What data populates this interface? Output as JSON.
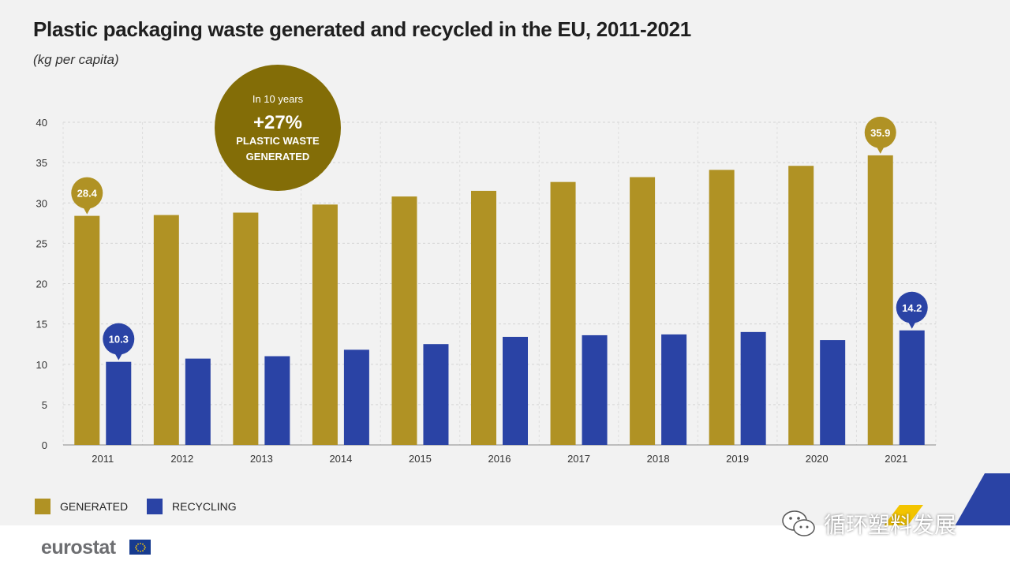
{
  "header": {
    "title": "Plastic packaging waste generated and recycled in the EU, 2011-2021",
    "subtitle": "(kg per capita)"
  },
  "callout": {
    "line1": "In 10 years",
    "value": "+27%",
    "line2": "PLASTIC WASTE",
    "line3": "GENERATED",
    "color": "#836d07"
  },
  "legend": {
    "generated": "GENERATED",
    "recycling": "RECYCLING"
  },
  "colors": {
    "generated": "#b09224",
    "recycling": "#2a43a5",
    "background": "#f2f2f2"
  },
  "footer": {
    "brand": "eurostat",
    "watermark": "循环塑料发展"
  },
  "chart_data": {
    "type": "bar",
    "categories": [
      "2011",
      "2012",
      "2013",
      "2014",
      "2015",
      "2016",
      "2017",
      "2018",
      "2019",
      "2020",
      "2021"
    ],
    "series": [
      {
        "name": "GENERATED",
        "values": [
          28.4,
          28.5,
          28.8,
          29.8,
          30.8,
          31.5,
          32.6,
          33.2,
          34.1,
          34.6,
          35.9
        ]
      },
      {
        "name": "RECYCLING",
        "values": [
          10.3,
          10.7,
          11.0,
          11.8,
          12.5,
          13.4,
          13.6,
          13.7,
          14.0,
          13.0,
          14.2
        ]
      }
    ],
    "ylim": [
      0,
      40
    ],
    "yticks": [
      0,
      5,
      10,
      15,
      20,
      25,
      30,
      35,
      40
    ],
    "xlabel": "",
    "ylabel": "",
    "grid": true,
    "legend_position": "bottom-left",
    "data_labels": [
      {
        "series": "GENERATED",
        "category": "2011",
        "text": "28.4"
      },
      {
        "series": "RECYCLING",
        "category": "2011",
        "text": "10.3"
      },
      {
        "series": "GENERATED",
        "category": "2021",
        "text": "35.9"
      },
      {
        "series": "RECYCLING",
        "category": "2021",
        "text": "14.2"
      }
    ]
  }
}
